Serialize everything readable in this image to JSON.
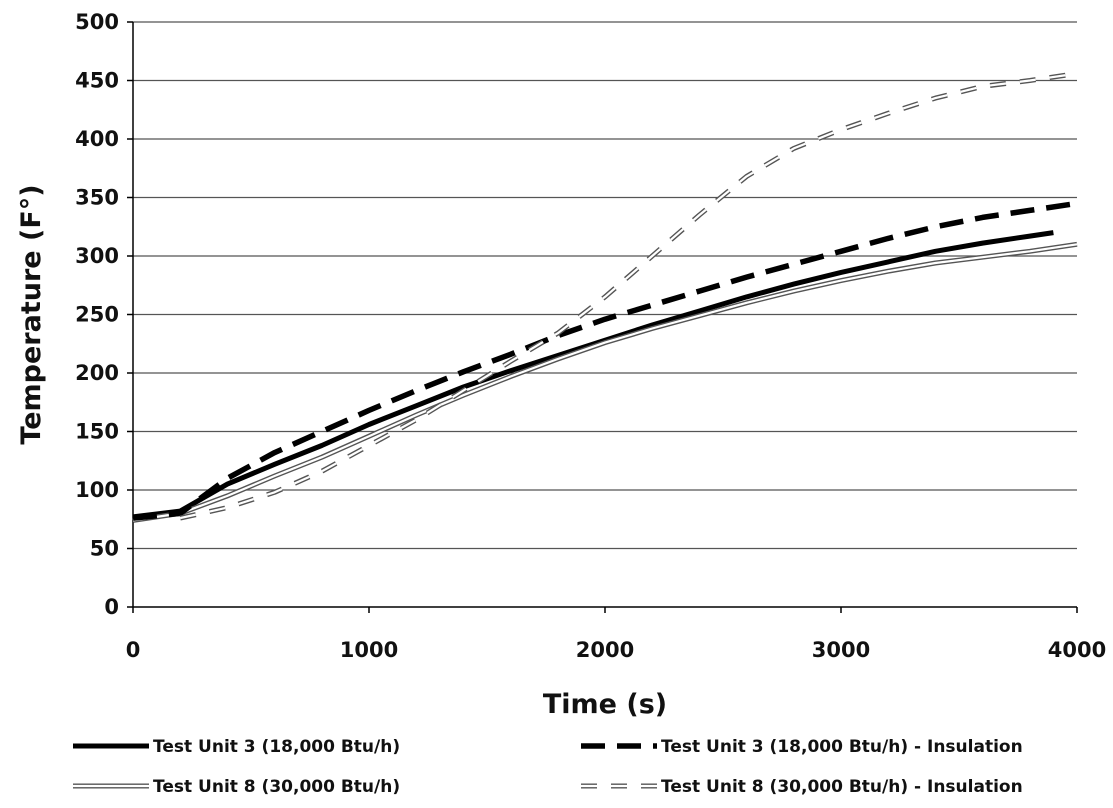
{
  "chart_data": {
    "type": "line",
    "title": "",
    "xlabel": "Time (s)",
    "ylabel": "Temperature (F°)",
    "xlim": [
      0,
      4000
    ],
    "ylim": [
      0,
      500
    ],
    "x_ticks": [
      0,
      1000,
      2000,
      3000,
      4000
    ],
    "y_ticks": [
      0,
      50,
      100,
      150,
      200,
      250,
      300,
      350,
      400,
      450,
      500
    ],
    "grid": "horizontal",
    "legend_position": "bottom",
    "series": [
      {
        "name": "Test Unit 3 (18,000 Btu/h)",
        "style": "solid-thick",
        "color": "#000000",
        "points": [
          [
            0,
            77
          ],
          [
            200,
            82
          ],
          [
            400,
            105
          ],
          [
            600,
            122
          ],
          [
            800,
            138
          ],
          [
            1000,
            156
          ],
          [
            1200,
            172
          ],
          [
            1400,
            188
          ],
          [
            1600,
            202
          ],
          [
            1800,
            215
          ],
          [
            2000,
            228
          ],
          [
            2200,
            241
          ],
          [
            2400,
            253
          ],
          [
            2600,
            265
          ],
          [
            2800,
            276
          ],
          [
            3000,
            286
          ],
          [
            3200,
            295
          ],
          [
            3400,
            304
          ],
          [
            3600,
            311
          ],
          [
            3800,
            317
          ],
          [
            3900,
            320
          ]
        ]
      },
      {
        "name": "Test Unit 8 (30,000 Btu/h)",
        "style": "double-thin",
        "color": "#666666",
        "points": [
          [
            0,
            74
          ],
          [
            200,
            80
          ],
          [
            400,
            95
          ],
          [
            600,
            112
          ],
          [
            800,
            128
          ],
          [
            1000,
            146
          ],
          [
            1200,
            164
          ],
          [
            1400,
            181
          ],
          [
            1600,
            197
          ],
          [
            1800,
            212
          ],
          [
            2000,
            226
          ],
          [
            2200,
            238
          ],
          [
            2400,
            249
          ],
          [
            2600,
            260
          ],
          [
            2800,
            270
          ],
          [
            3000,
            279
          ],
          [
            3200,
            287
          ],
          [
            3400,
            294
          ],
          [
            3600,
            299
          ],
          [
            3800,
            304
          ],
          [
            4000,
            310
          ]
        ]
      },
      {
        "name": "Test Unit 3 (18,000 Btu/h) - Insulation",
        "style": "dashed-thick",
        "color": "#000000",
        "points": [
          [
            0,
            76
          ],
          [
            200,
            80
          ],
          [
            400,
            110
          ],
          [
            600,
            132
          ],
          [
            800,
            150
          ],
          [
            1000,
            168
          ],
          [
            1200,
            185
          ],
          [
            1400,
            201
          ],
          [
            1600,
            216
          ],
          [
            1800,
            232
          ],
          [
            2000,
            246
          ],
          [
            2200,
            258
          ],
          [
            2400,
            270
          ],
          [
            2600,
            282
          ],
          [
            2800,
            293
          ],
          [
            3000,
            304
          ],
          [
            3200,
            315
          ],
          [
            3400,
            325
          ],
          [
            3600,
            333
          ],
          [
            3800,
            339
          ],
          [
            4000,
            345
          ]
        ]
      },
      {
        "name": "Test Unit 8 (30,000 Btu/h) - Insulation",
        "style": "dashed-double",
        "color": "#666666",
        "points": [
          [
            200,
            76
          ],
          [
            400,
            85
          ],
          [
            600,
            98
          ],
          [
            800,
            116
          ],
          [
            1000,
            138
          ],
          [
            1200,
            160
          ],
          [
            1400,
            185
          ],
          [
            1600,
            210
          ],
          [
            1800,
            234
          ],
          [
            2000,
            265
          ],
          [
            2200,
            300
          ],
          [
            2400,
            335
          ],
          [
            2600,
            368
          ],
          [
            2800,
            392
          ],
          [
            3000,
            408
          ],
          [
            3200,
            422
          ],
          [
            3400,
            435
          ],
          [
            3600,
            445
          ],
          [
            3800,
            450
          ],
          [
            4000,
            456
          ]
        ]
      }
    ]
  }
}
